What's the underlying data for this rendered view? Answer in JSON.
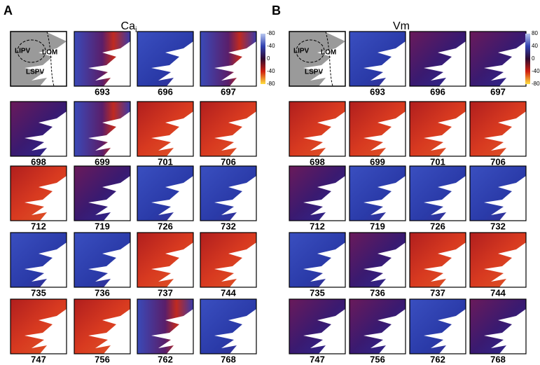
{
  "panels": [
    {
      "label": "A",
      "title": "Ca",
      "title_sub": "i",
      "schematic_labels": [
        "LIPV",
        "LOM",
        "LSPV"
      ],
      "colorbar_labels": [
        "-80",
        "-40",
        "0",
        "-40",
        "-80"
      ],
      "frames": [
        693,
        696,
        697,
        698,
        699,
        701,
        706,
        712,
        719,
        726,
        732,
        735,
        736,
        737,
        744,
        747,
        756,
        762,
        768
      ]
    },
    {
      "label": "B",
      "title": "Vm",
      "schematic_labels": [
        "LIPV",
        "LOM",
        "LSPV"
      ],
      "colorbar_labels": [
        "80",
        "40",
        "0",
        "-40",
        "-80"
      ],
      "frames": [
        693,
        696,
        697,
        698,
        699,
        701,
        706,
        712,
        719,
        726,
        732,
        735,
        736,
        737,
        744,
        747,
        756,
        762,
        768
      ]
    }
  ]
}
